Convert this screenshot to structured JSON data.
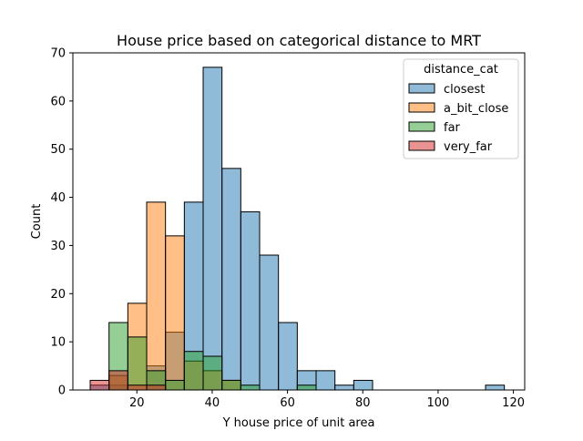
{
  "chart_data": {
    "type": "bar",
    "subtype": "histogram",
    "title": "House price based on categorical distance to MRT",
    "xlabel": "Y house price of unit area",
    "ylabel": "Count",
    "xlim": [
      3,
      123
    ],
    "ylim": [
      0,
      70
    ],
    "xticks": [
      20,
      40,
      60,
      80,
      100,
      120
    ],
    "yticks": [
      0,
      10,
      20,
      30,
      40,
      50,
      60,
      70
    ],
    "bin_edges": [
      7.6,
      12.6,
      17.6,
      22.6,
      27.6,
      32.6,
      37.6,
      42.6,
      47.6,
      52.6,
      57.6,
      62.6,
      67.6,
      72.6,
      77.6,
      82.6,
      87.6,
      92.6,
      97.6,
      102.6,
      107.6,
      112.6,
      117.6
    ],
    "legend": {
      "title": "distance_cat",
      "position": "upper right"
    },
    "grid": false,
    "series": [
      {
        "name": "closest",
        "color": "#1f77b4",
        "values": [
          1,
          1,
          0,
          5,
          12,
          39,
          67,
          46,
          37,
          28,
          14,
          4,
          4,
          1,
          2,
          0,
          0,
          0,
          0,
          0,
          0,
          1
        ]
      },
      {
        "name": "a_bit_close",
        "color": "#ff7f0e",
        "values": [
          0,
          3,
          18,
          39,
          32,
          6,
          4,
          2,
          0,
          0,
          0,
          0,
          0,
          0,
          0,
          0,
          0,
          0,
          0,
          0,
          0,
          0
        ]
      },
      {
        "name": "far",
        "color": "#2ca02c",
        "values": [
          0,
          14,
          11,
          4,
          2,
          8,
          7,
          2,
          1,
          0,
          0,
          1,
          0,
          0,
          0,
          0,
          0,
          0,
          0,
          0,
          0,
          0
        ]
      },
      {
        "name": "very_far",
        "color": "#d62728",
        "values": [
          2,
          4,
          1,
          1,
          0,
          0,
          0,
          0,
          0,
          0,
          0,
          0,
          0,
          0,
          0,
          0,
          0,
          0,
          0,
          0,
          0,
          0
        ]
      }
    ]
  }
}
